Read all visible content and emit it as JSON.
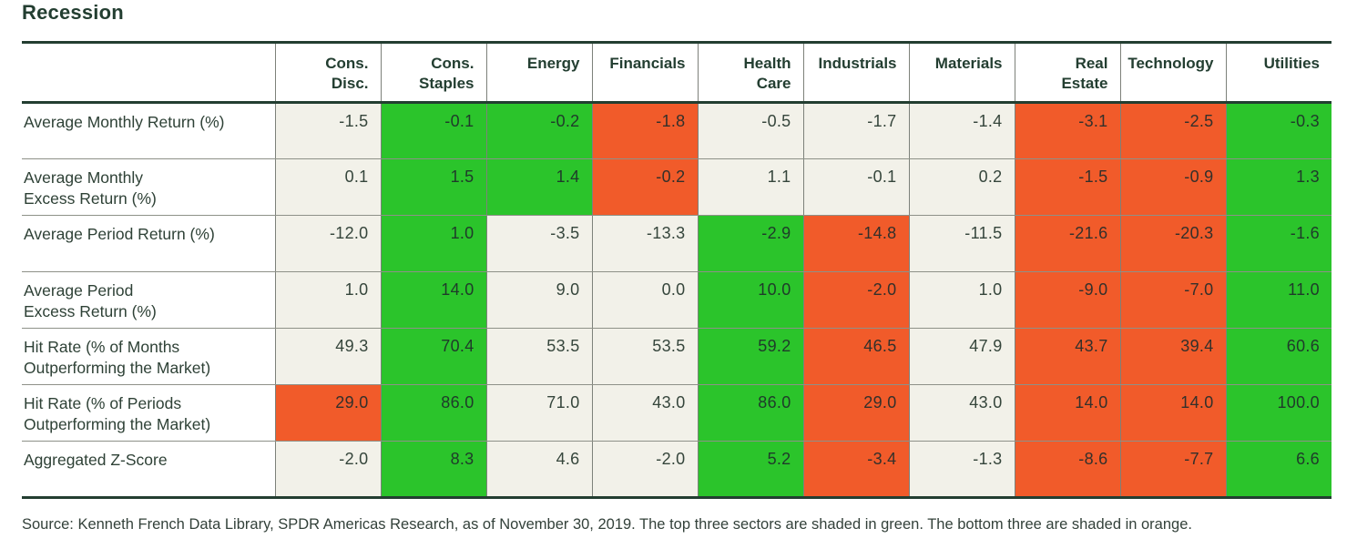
{
  "title": "Recession",
  "colors": {
    "green": "#2BC42B",
    "orange": "#F15B2A",
    "neutral": "#F2F1E9",
    "dark": "#233E31"
  },
  "legend": {
    "green_meaning": "Top three sectors",
    "orange_meaning": "Bottom three sectors"
  },
  "source": "Source: Kenneth French Data Library, SPDR Americas Research, as of November 30, 2019. The top three sectors are shaded in green. The bottom three are shaded in orange.",
  "chart_data": {
    "type": "table",
    "title": "Recession",
    "columns": [
      "Cons.\nDisc.",
      "Cons.\nStaples",
      "Energy",
      "Financials",
      "Health\nCare",
      "Industrials",
      "Materials",
      "Real\nEstate",
      "Technology",
      "Utilities"
    ],
    "rows": [
      {
        "label": "Average Monthly Return (%)",
        "values": [
          "-1.5",
          "-0.1",
          "-0.2",
          "-1.8",
          "-0.5",
          "-1.7",
          "-1.4",
          "-3.1",
          "-2.5",
          "-0.3"
        ],
        "shading": [
          "none",
          "green",
          "green",
          "orange",
          "none",
          "none",
          "none",
          "orange",
          "orange",
          "green"
        ]
      },
      {
        "label": "Average Monthly\nExcess Return (%)",
        "values": [
          "0.1",
          "1.5",
          "1.4",
          "-0.2",
          "1.1",
          "-0.1",
          "0.2",
          "-1.5",
          "-0.9",
          "1.3"
        ],
        "shading": [
          "none",
          "green",
          "green",
          "orange",
          "none",
          "none",
          "none",
          "orange",
          "orange",
          "green"
        ]
      },
      {
        "label": "Average Period Return (%)",
        "values": [
          "-12.0",
          "1.0",
          "-3.5",
          "-13.3",
          "-2.9",
          "-14.8",
          "-11.5",
          "-21.6",
          "-20.3",
          "-1.6"
        ],
        "shading": [
          "none",
          "green",
          "none",
          "none",
          "green",
          "orange",
          "none",
          "orange",
          "orange",
          "green"
        ]
      },
      {
        "label": "Average Period\nExcess Return (%)",
        "values": [
          "1.0",
          "14.0",
          "9.0",
          "0.0",
          "10.0",
          "-2.0",
          "1.0",
          "-9.0",
          "-7.0",
          "11.0"
        ],
        "shading": [
          "none",
          "green",
          "none",
          "none",
          "green",
          "orange",
          "none",
          "orange",
          "orange",
          "green"
        ]
      },
      {
        "label": "Hit Rate (% of Months\nOutperforming the Market)",
        "values": [
          "49.3",
          "70.4",
          "53.5",
          "53.5",
          "59.2",
          "46.5",
          "47.9",
          "43.7",
          "39.4",
          "60.6"
        ],
        "shading": [
          "none",
          "green",
          "none",
          "none",
          "green",
          "orange",
          "none",
          "orange",
          "orange",
          "green"
        ]
      },
      {
        "label": "Hit Rate (% of Periods\nOutperforming the Market)",
        "values": [
          "29.0",
          "86.0",
          "71.0",
          "43.0",
          "86.0",
          "29.0",
          "43.0",
          "14.0",
          "14.0",
          "100.0"
        ],
        "shading": [
          "orange",
          "green",
          "none",
          "none",
          "green",
          "orange",
          "none",
          "orange",
          "orange",
          "green"
        ]
      },
      {
        "label": "Aggregated Z-Score",
        "values": [
          "-2.0",
          "8.3",
          "4.6",
          "-2.0",
          "5.2",
          "-3.4",
          "-1.3",
          "-8.6",
          "-7.7",
          "6.6"
        ],
        "shading": [
          "none",
          "green",
          "none",
          "none",
          "green",
          "orange",
          "none",
          "orange",
          "orange",
          "green"
        ]
      }
    ]
  }
}
